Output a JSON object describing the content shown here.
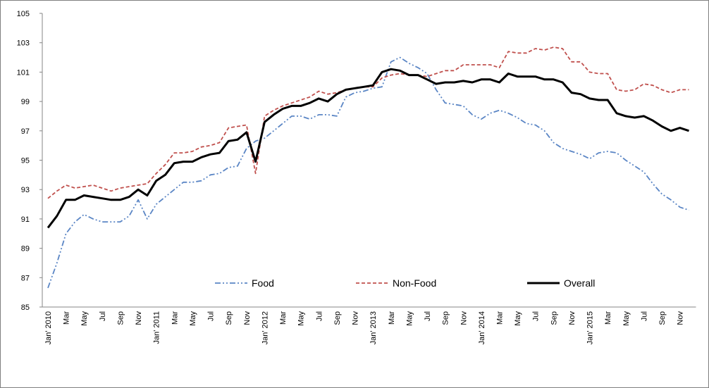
{
  "chart_data": {
    "type": "line",
    "categories": [
      "Jan' 2010",
      null,
      "Mar",
      null,
      "May",
      null,
      "Jul",
      null,
      "Sep",
      null,
      "Nov",
      null,
      "Jan' 2011",
      null,
      "Mar",
      null,
      "May",
      null,
      "Jul",
      null,
      "Sep",
      null,
      "Nov",
      null,
      "Jan' 2012",
      null,
      "Mar",
      null,
      "May",
      null,
      "Jul",
      null,
      "Sep",
      null,
      "Nov",
      null,
      "Jan' 2013",
      null,
      "Mar",
      null,
      "May",
      null,
      "Jul",
      null,
      "Sep",
      null,
      "Nov",
      null,
      "Jan' 2014",
      null,
      "Mar",
      null,
      "May",
      null,
      "Jul",
      null,
      "Sep",
      null,
      "Nov",
      null,
      "Jan' 2015",
      null,
      "Mar",
      null,
      "May",
      null,
      "Jul",
      null,
      "Sep",
      null,
      "Nov",
      null
    ],
    "series": [
      {
        "name": "Food",
        "color": "#5b86c5",
        "style": "dash-dot-dot",
        "values": [
          86.3,
          88.0,
          90.0,
          90.8,
          91.3,
          91.0,
          90.8,
          90.8,
          90.8,
          91.2,
          92.3,
          91.0,
          92.0,
          92.5,
          93.0,
          93.5,
          93.5,
          93.6,
          94.0,
          94.1,
          94.5,
          94.6,
          95.8,
          96.3,
          96.5,
          97.0,
          97.5,
          98.0,
          98.0,
          97.8,
          98.1,
          98.1,
          98.0,
          99.3,
          99.6,
          99.7,
          99.9,
          100.0,
          101.7,
          102.0,
          101.6,
          101.3,
          100.9,
          99.8,
          98.9,
          98.8,
          98.7,
          98.1,
          97.8,
          98.2,
          98.4,
          98.2,
          97.9,
          97.5,
          97.4,
          97.0,
          96.2,
          95.8,
          95.6,
          95.4,
          95.1,
          95.5,
          95.6,
          95.5,
          95.0,
          94.6,
          94.2,
          93.4,
          92.7,
          92.3,
          91.8,
          91.6
        ]
      },
      {
        "name": "Non-Food",
        "color": "#c0504d",
        "style": "dashed",
        "values": [
          92.4,
          92.9,
          93.3,
          93.1,
          93.2,
          93.3,
          93.1,
          92.9,
          93.1,
          93.2,
          93.3,
          93.4,
          94.1,
          94.7,
          95.5,
          95.5,
          95.6,
          95.9,
          96.0,
          96.2,
          97.2,
          97.3,
          97.4,
          94.1,
          98.0,
          98.4,
          98.7,
          98.9,
          99.1,
          99.3,
          99.7,
          99.5,
          99.6,
          99.8,
          99.9,
          100.0,
          100.0,
          100.6,
          100.8,
          100.9,
          100.8,
          100.8,
          100.7,
          100.9,
          101.1,
          101.1,
          101.5,
          101.5,
          101.5,
          101.5,
          101.3,
          102.4,
          102.3,
          102.3,
          102.6,
          102.5,
          102.7,
          102.6,
          101.7,
          101.7,
          101.0,
          100.9,
          100.9,
          99.8,
          99.7,
          99.8,
          100.2,
          100.1,
          99.8,
          99.6,
          99.8,
          99.8
        ]
      },
      {
        "name": "Overall",
        "color": "#000000",
        "style": "solid",
        "values": [
          90.4,
          91.2,
          92.3,
          92.3,
          92.6,
          92.5,
          92.4,
          92.3,
          92.3,
          92.5,
          93.0,
          92.6,
          93.6,
          94.0,
          94.8,
          94.9,
          94.9,
          95.2,
          95.4,
          95.5,
          96.3,
          96.4,
          96.9,
          94.9,
          97.6,
          98.1,
          98.5,
          98.7,
          98.7,
          98.9,
          99.2,
          99.0,
          99.5,
          99.8,
          99.9,
          100.0,
          100.1,
          101.0,
          101.2,
          101.1,
          100.8,
          100.8,
          100.5,
          100.2,
          100.3,
          100.3,
          100.4,
          100.3,
          100.5,
          100.5,
          100.3,
          100.9,
          100.7,
          100.7,
          100.7,
          100.5,
          100.5,
          100.3,
          99.6,
          99.5,
          99.2,
          99.1,
          99.1,
          98.2,
          98.0,
          97.9,
          98.0,
          97.7,
          97.3,
          97.0,
          97.2,
          97.0
        ]
      }
    ],
    "ylim": [
      85,
      105
    ],
    "yticks": [
      85,
      87,
      89,
      91,
      93,
      95,
      97,
      99,
      101,
      103,
      105
    ],
    "grid": false,
    "legend": "bottom"
  }
}
